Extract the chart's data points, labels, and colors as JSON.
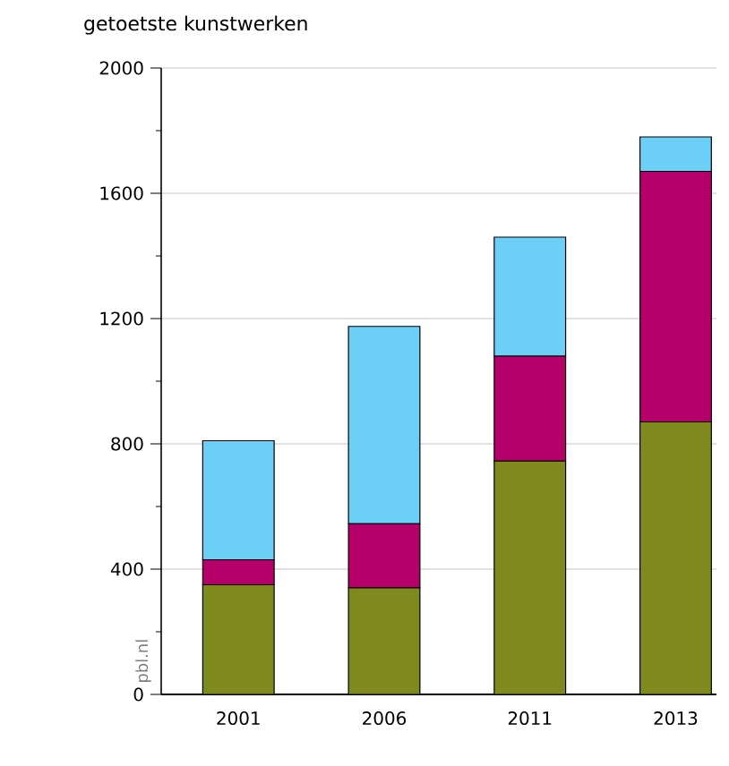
{
  "chart_data": {
    "type": "bar",
    "title": "getoetste kunstwerken",
    "stacked": true,
    "categories": [
      "2001",
      "2006",
      "2011",
      "2013"
    ],
    "series": [
      {
        "color": "#7f8a1e",
        "values": [
          350,
          340,
          745,
          870
        ]
      },
      {
        "color": "#b5006a",
        "values": [
          80,
          205,
          335,
          800
        ]
      },
      {
        "color": "#6ccff6",
        "values": [
          380,
          630,
          380,
          110
        ]
      }
    ],
    "ylim": [
      0,
      2000
    ],
    "yticks": [
      0,
      {
        "value": 200,
        "label": null
      },
      400,
      {
        "value": 600,
        "label": null
      },
      800,
      {
        "value": 1000,
        "label": null
      },
      1200,
      {
        "value": 1400,
        "label": null
      },
      1600,
      {
        "value": 1800,
        "label": null
      },
      2000
    ],
    "grid": "y",
    "annotations": [
      "pbl.nl"
    ]
  }
}
